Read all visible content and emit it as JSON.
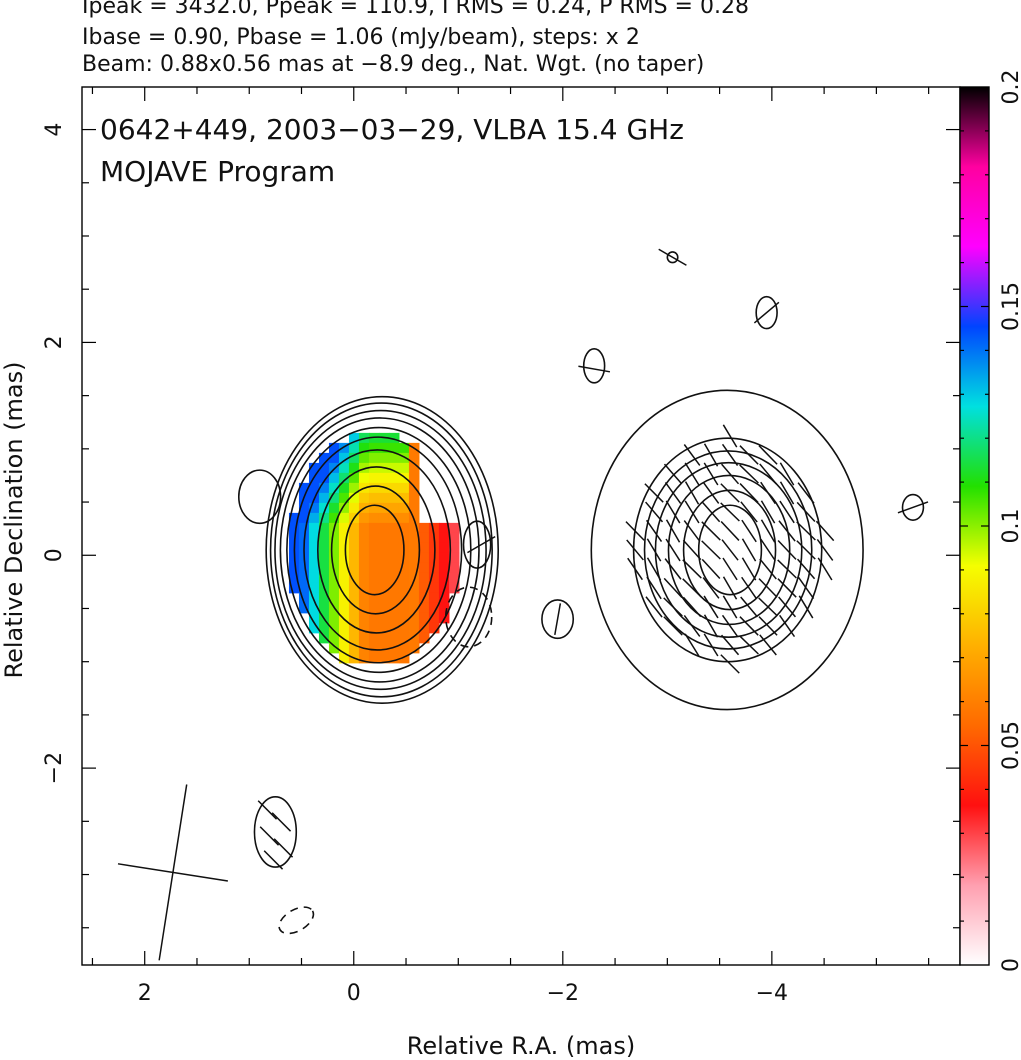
{
  "header": {
    "line1": "Ipeak = 3432.0, Ppeak = 110.9, I RMS = 0.24, P RMS = 0.28",
    "line2": "Ibase = 0.90, Pbase = 1.06 (mJy/beam), steps: x 2",
    "line3": "Beam: 0.88x0.56 mas at −8.9 deg., Nat. Wgt. (no taper)"
  },
  "plot": {
    "title_line1": "0642+449, 2003−03−29, VLBA 15.4 GHz",
    "title_line2": "MOJAVE Program"
  },
  "chart_data": {
    "type": "heatmap",
    "xlabel": "Relative R.A. (mas)",
    "ylabel": "Relative Declination (mas)",
    "xlim": [
      2.6,
      -5.8
    ],
    "ylim": [
      -3.85,
      4.4
    ],
    "x_ticks": [
      2,
      0,
      -2,
      -4
    ],
    "x_tick_labels": [
      "2",
      "0",
      "−2",
      "−4"
    ],
    "y_ticks": [
      4,
      2,
      0,
      -2
    ],
    "y_tick_labels": [
      "4",
      "2",
      "0",
      "−2"
    ],
    "colorbar": {
      "range": [
        0,
        0.2
      ],
      "ticks": [
        0,
        0.05,
        0.1,
        0.15,
        0.2
      ],
      "tick_labels": [
        "0",
        "0.05",
        "0.1",
        "0.15",
        "0.2"
      ],
      "colormap": [
        "#ffffff",
        "#ff9fb0",
        "#ff1010",
        "#ff6a00",
        "#ffb000",
        "#f5ff00",
        "#22e000",
        "#00e0e0",
        "#0044ff",
        "#ff00ff",
        "#ff00a0",
        "#000000"
      ]
    },
    "sources": [
      {
        "component": "core",
        "center": [
          -0.2,
          0.05
        ],
        "contour_radii": [
          [
            0.28,
            0.42
          ],
          [
            0.42,
            0.6
          ],
          [
            0.56,
            0.78
          ],
          [
            0.7,
            0.94
          ],
          [
            0.8,
            1.06
          ],
          [
            0.88,
            1.15
          ],
          [
            0.95,
            1.24
          ],
          [
            1.01,
            1.31
          ],
          [
            1.06,
            1.38
          ],
          [
            1.11,
            1.44
          ]
        ],
        "outer_center": [
          0.0,
          0.0
        ]
      },
      {
        "component": "right-lobe",
        "center": [
          -3.6,
          0.05
        ],
        "contour_radii": [
          [
            0.3,
            0.42
          ],
          [
            0.44,
            0.56
          ],
          [
            0.58,
            0.7
          ],
          [
            0.7,
            0.82
          ],
          [
            0.8,
            0.93
          ],
          [
            0.9,
            1.05
          ],
          [
            1.3,
            1.5
          ]
        ]
      }
    ],
    "beam": {
      "major_mas": 0.88,
      "minor_mas": 0.56,
      "pa_deg": -8.9
    }
  }
}
